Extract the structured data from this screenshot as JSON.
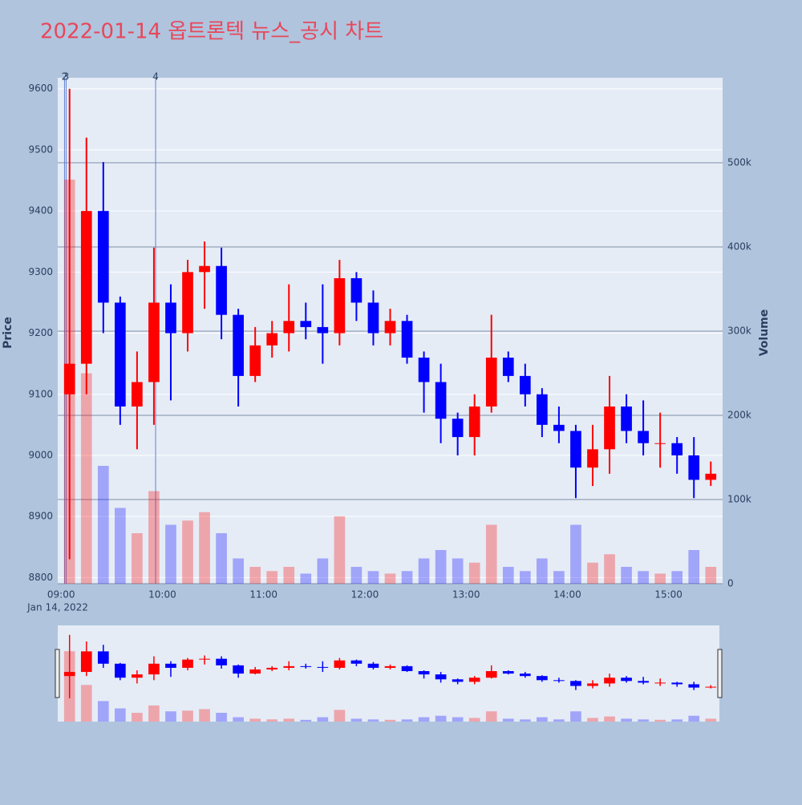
{
  "chart_data": {
    "type": "candlestick",
    "title": "2022-01-14 옵트론텍 뉴스_공시 차트",
    "y_title": "Price",
    "y2_title": "Volume",
    "x_date_label": "Jan 14, 2022",
    "increasing_color": "#ff0000",
    "decreasing_color": "#0000ff",
    "x": [
      "09:00",
      "09:10",
      "09:20",
      "09:30",
      "09:40",
      "09:50",
      "10:00",
      "10:10",
      "10:20",
      "10:30",
      "10:40",
      "10:50",
      "11:00",
      "11:10",
      "11:20",
      "11:30",
      "11:40",
      "11:50",
      "12:00",
      "12:10",
      "12:20",
      "12:30",
      "12:40",
      "12:50",
      "13:00",
      "13:10",
      "13:20",
      "13:30",
      "13:40",
      "13:50",
      "14:00",
      "14:10",
      "14:20",
      "14:30",
      "14:40",
      "14:50",
      "15:00",
      "15:10",
      "15:20"
    ],
    "open": [
      9100,
      9150,
      9400,
      9250,
      9080,
      9120,
      9250,
      9200,
      9300,
      9310,
      9230,
      9130,
      9180,
      9200,
      9220,
      9210,
      9200,
      9290,
      9250,
      9200,
      9220,
      9160,
      9120,
      9060,
      9030,
      9080,
      9160,
      9130,
      9100,
      9050,
      9040,
      8980,
      9010,
      9080,
      9040,
      9020,
      9020,
      9000,
      8960
    ],
    "high": [
      9600,
      9520,
      9480,
      9260,
      9170,
      9340,
      9280,
      9320,
      9350,
      9340,
      9240,
      9210,
      9220,
      9280,
      9250,
      9280,
      9320,
      9300,
      9270,
      9240,
      9230,
      9170,
      9150,
      9070,
      9100,
      9230,
      9170,
      9150,
      9110,
      9080,
      9050,
      9050,
      9130,
      9100,
      9090,
      9070,
      9030,
      9030,
      8990
    ],
    "low": [
      8830,
      9100,
      9200,
      9050,
      9010,
      9050,
      9090,
      9170,
      9240,
      9190,
      9080,
      9120,
      9160,
      9170,
      9190,
      9150,
      9180,
      9220,
      9180,
      9180,
      9150,
      9070,
      9020,
      9000,
      9000,
      9070,
      9120,
      9080,
      9030,
      9020,
      8930,
      8950,
      8970,
      9020,
      9000,
      8980,
      8970,
      8930,
      8950
    ],
    "close": [
      9150,
      9400,
      9250,
      9080,
      9120,
      9250,
      9200,
      9300,
      9310,
      9230,
      9130,
      9180,
      9200,
      9220,
      9210,
      9200,
      9290,
      9250,
      9200,
      9220,
      9160,
      9120,
      9060,
      9030,
      9080,
      9160,
      9130,
      9100,
      9050,
      9040,
      8980,
      9010,
      9080,
      9040,
      9020,
      9020,
      9000,
      8960,
      8970
    ],
    "volume": [
      480000,
      250000,
      140000,
      90000,
      60000,
      110000,
      70000,
      75000,
      85000,
      60000,
      30000,
      20000,
      15000,
      20000,
      12000,
      30000,
      80000,
      20000,
      15000,
      12000,
      15000,
      30000,
      40000,
      30000,
      25000,
      70000,
      20000,
      15000,
      30000,
      15000,
      70000,
      25000,
      35000,
      20000,
      15000,
      12000,
      15000,
      40000,
      20000
    ],
    "xlim": [
      "08:58",
      "15:32"
    ],
    "xticks": [
      "09:00",
      "10:00",
      "11:00",
      "12:00",
      "13:00",
      "14:00",
      "15:00"
    ],
    "ylim": [
      8790,
      9618
    ],
    "yticks": [
      8800,
      8900,
      9000,
      9100,
      9200,
      9300,
      9400,
      9500,
      9600
    ],
    "y2lim": [
      0,
      601000
    ],
    "y2ticks": [
      0,
      {
        "value": 100000,
        "label": "100k"
      },
      {
        "value": 200000,
        "label": "200k"
      },
      {
        "value": 300000,
        "label": "300k"
      },
      {
        "value": 400000,
        "label": "400k"
      },
      {
        "value": 500000,
        "label": "500k"
      }
    ],
    "news_markers": [
      {
        "x": "09:02",
        "label": "2"
      },
      {
        "x": "09:02",
        "label": "3"
      },
      {
        "x": "09:56",
        "label": "4"
      }
    ]
  }
}
